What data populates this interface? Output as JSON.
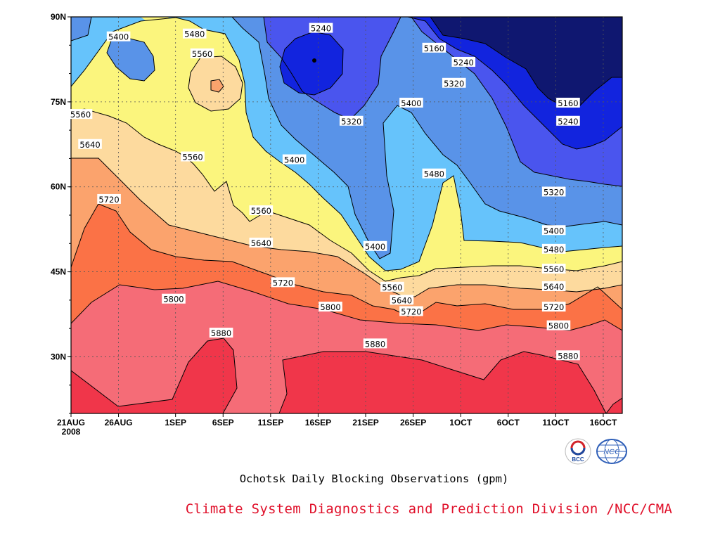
{
  "chart_data": {
    "type": "heatmap",
    "title": "Ochotsk Daily Blocking Observations (gpm)",
    "x_tick_labels": [
      "21AUG\n2008",
      "26AUG",
      "1SEP",
      "6SEP",
      "11SEP",
      "16SEP",
      "21SEP",
      "26SEP",
      "1OCT",
      "6OCT",
      "11OCT",
      "16OCT"
    ],
    "y_tick_labels": [
      "30N",
      "45N",
      "60N",
      "75N",
      "90N"
    ],
    "y_ticks": [
      30,
      45,
      60,
      75,
      90
    ],
    "ylim": [
      20,
      90
    ],
    "xlim_days": [
      0,
      58
    ],
    "x_tick_days": [
      0,
      5,
      11,
      16,
      21,
      26,
      31,
      36,
      41,
      46,
      51,
      56
    ],
    "levels": [
      5160,
      5240,
      5320,
      5400,
      5480,
      5560,
      5640,
      5720,
      5800,
      5880
    ],
    "level_colors": [
      "#0f1770",
      "#1224de",
      "#4a55ee",
      "#5993e8",
      "#66c3fb",
      "#fbf57d",
      "#fdda9e",
      "#fba36d",
      "#fb7246",
      "#f56c77",
      "#f0364a"
    ],
    "grid": true,
    "contour_labels": [
      {
        "value": 5400,
        "day": 5.0,
        "lat": 86.5
      },
      {
        "value": 5480,
        "day": 13.0,
        "lat": 87.0
      },
      {
        "value": 5560,
        "day": 13.8,
        "lat": 83.5
      },
      {
        "value": 5240,
        "day": 26.3,
        "lat": 88.0
      },
      {
        "value": 5160,
        "day": 38.2,
        "lat": 84.5
      },
      {
        "value": 5240,
        "day": 41.3,
        "lat": 82.0
      },
      {
        "value": 5320,
        "day": 40.3,
        "lat": 78.3
      },
      {
        "value": 5400,
        "day": 35.8,
        "lat": 74.8
      },
      {
        "value": 5320,
        "day": 29.5,
        "lat": 71.6
      },
      {
        "value": 5160,
        "day": 52.3,
        "lat": 74.8
      },
      {
        "value": 5240,
        "day": 52.3,
        "lat": 71.6
      },
      {
        "value": 5560,
        "day": 1.0,
        "lat": 72.8
      },
      {
        "value": 5640,
        "day": 2.0,
        "lat": 67.5
      },
      {
        "value": 5720,
        "day": 4.0,
        "lat": 57.8
      },
      {
        "value": 5560,
        "day": 12.8,
        "lat": 65.3
      },
      {
        "value": 5400,
        "day": 23.5,
        "lat": 64.8
      },
      {
        "value": 5480,
        "day": 38.2,
        "lat": 62.3
      },
      {
        "value": 5320,
        "day": 50.8,
        "lat": 59.1
      },
      {
        "value": 5560,
        "day": 20.0,
        "lat": 55.8
      },
      {
        "value": 5400,
        "day": 32.0,
        "lat": 49.5
      },
      {
        "value": 5400,
        "day": 50.8,
        "lat": 52.3
      },
      {
        "value": 5640,
        "day": 20.0,
        "lat": 50.1
      },
      {
        "value": 5480,
        "day": 50.8,
        "lat": 49.0
      },
      {
        "value": 5560,
        "day": 33.8,
        "lat": 42.3
      },
      {
        "value": 5560,
        "day": 50.8,
        "lat": 45.5
      },
      {
        "value": 5640,
        "day": 34.8,
        "lat": 40.0
      },
      {
        "value": 5640,
        "day": 50.8,
        "lat": 42.4
      },
      {
        "value": 5720,
        "day": 22.3,
        "lat": 43.1
      },
      {
        "value": 5720,
        "day": 35.8,
        "lat": 38.0
      },
      {
        "value": 5720,
        "day": 50.8,
        "lat": 38.8
      },
      {
        "value": 5800,
        "day": 10.8,
        "lat": 40.2
      },
      {
        "value": 5800,
        "day": 27.3,
        "lat": 38.8
      },
      {
        "value": 5800,
        "day": 51.3,
        "lat": 35.5
      },
      {
        "value": 5880,
        "day": 15.8,
        "lat": 34.2
      },
      {
        "value": 5880,
        "day": 32.0,
        "lat": 32.3
      },
      {
        "value": 5880,
        "day": 52.3,
        "lat": 30.2
      }
    ]
  },
  "footer": {
    "caption": "Ochotsk Daily Blocking Observations (gpm)",
    "credit": "Climate System Diagnostics and Prediction Division /NCC/CMA",
    "logo_left_text": "BCC",
    "logo_right_text": "NCC",
    "logo_left_colors": [
      "#d2232a",
      "#1e4ba0"
    ],
    "logo_right_color": "#2f5fb8"
  }
}
